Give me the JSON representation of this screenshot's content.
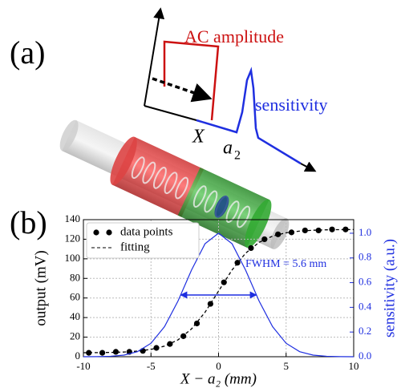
{
  "diagram": {
    "panel_label": "(a)",
    "amplitude_label": "AC amplitude",
    "sensitivity_label": "sensitivity",
    "position_label": "X",
    "center_label": "a",
    "center_subscript": "2"
  },
  "chart_data": {
    "type": "line",
    "panel_label": "(b)",
    "xlabel": "X − a₂ (mm)",
    "ylabel": "output (mV)",
    "y2label": "sensitivity (a.u.)",
    "xlim": [
      -10,
      10
    ],
    "xticks": [
      -10,
      -5,
      0,
      5,
      10
    ],
    "ylim": [
      0,
      140
    ],
    "yticks": [
      0,
      20,
      40,
      60,
      80,
      100,
      120,
      140
    ],
    "y2lim": [
      0,
      1.11
    ],
    "y2ticks": [
      {
        "value": 0,
        "label": "0.0"
      },
      {
        "value": 0.2,
        "label": "0.2"
      },
      {
        "value": 0.4,
        "label": "0.4"
      },
      {
        "value": 0.6,
        "label": "0.6"
      },
      {
        "value": 0.8,
        "label": "0.8"
      },
      {
        "value": 1,
        "label": "1.0"
      }
    ],
    "grid": true,
    "legend": "upper left",
    "series": [
      {
        "name": "data points",
        "style": "markers",
        "color": "#000000",
        "x": [
          -9.6,
          -8.6,
          -7.6,
          -6.6,
          -5.6,
          -4.6,
          -3.6,
          -2.6,
          -1.6,
          -0.6,
          0.4,
          1.4,
          2.4,
          3.4,
          4.4,
          5.4,
          6.4,
          7.4,
          8.4,
          9.4
        ],
        "values": [
          4,
          4,
          5,
          5,
          6,
          9,
          13,
          21,
          34,
          54,
          76,
          96,
          111,
          120,
          125,
          127,
          129,
          129,
          130,
          130
        ]
      },
      {
        "name": "fitting",
        "style": "dashed",
        "color": "#000000",
        "x": [
          -10,
          -9,
          -8,
          -7,
          -6,
          -5,
          -4,
          -3,
          -2,
          -1,
          0,
          1,
          2,
          3,
          4,
          5,
          6,
          7,
          8,
          9,
          10
        ],
        "values": [
          4.1,
          4.2,
          4.4,
          4.8,
          5.7,
          7.5,
          10.8,
          17.2,
          28.4,
          45.4,
          67,
          88.6,
          105.7,
          116.8,
          123.2,
          126.6,
          128.3,
          129.2,
          129.6,
          129.8,
          129.9
        ]
      },
      {
        "style": "solid",
        "color": "#1f2fe0",
        "axis": "y2",
        "x": [
          -10,
          -9,
          -8,
          -7,
          -6,
          -5,
          -4,
          -3,
          -2,
          -1,
          0,
          1,
          2,
          3,
          4,
          5,
          6,
          7,
          8,
          9,
          10
        ],
        "values": [
          0.0001,
          0.0008,
          0.0035,
          0.013,
          0.041,
          0.109,
          0.243,
          0.451,
          0.702,
          0.915,
          1,
          0.915,
          0.702,
          0.451,
          0.243,
          0.109,
          0.041,
          0.013,
          0.0035,
          0.0008,
          0.0001
        ]
      }
    ],
    "annotations": [
      {
        "text": "FWHM = 5.6 mm",
        "x": [
          -2.8,
          2.8
        ],
        "y": 0.5,
        "color": "#1f2fe0"
      }
    ]
  }
}
